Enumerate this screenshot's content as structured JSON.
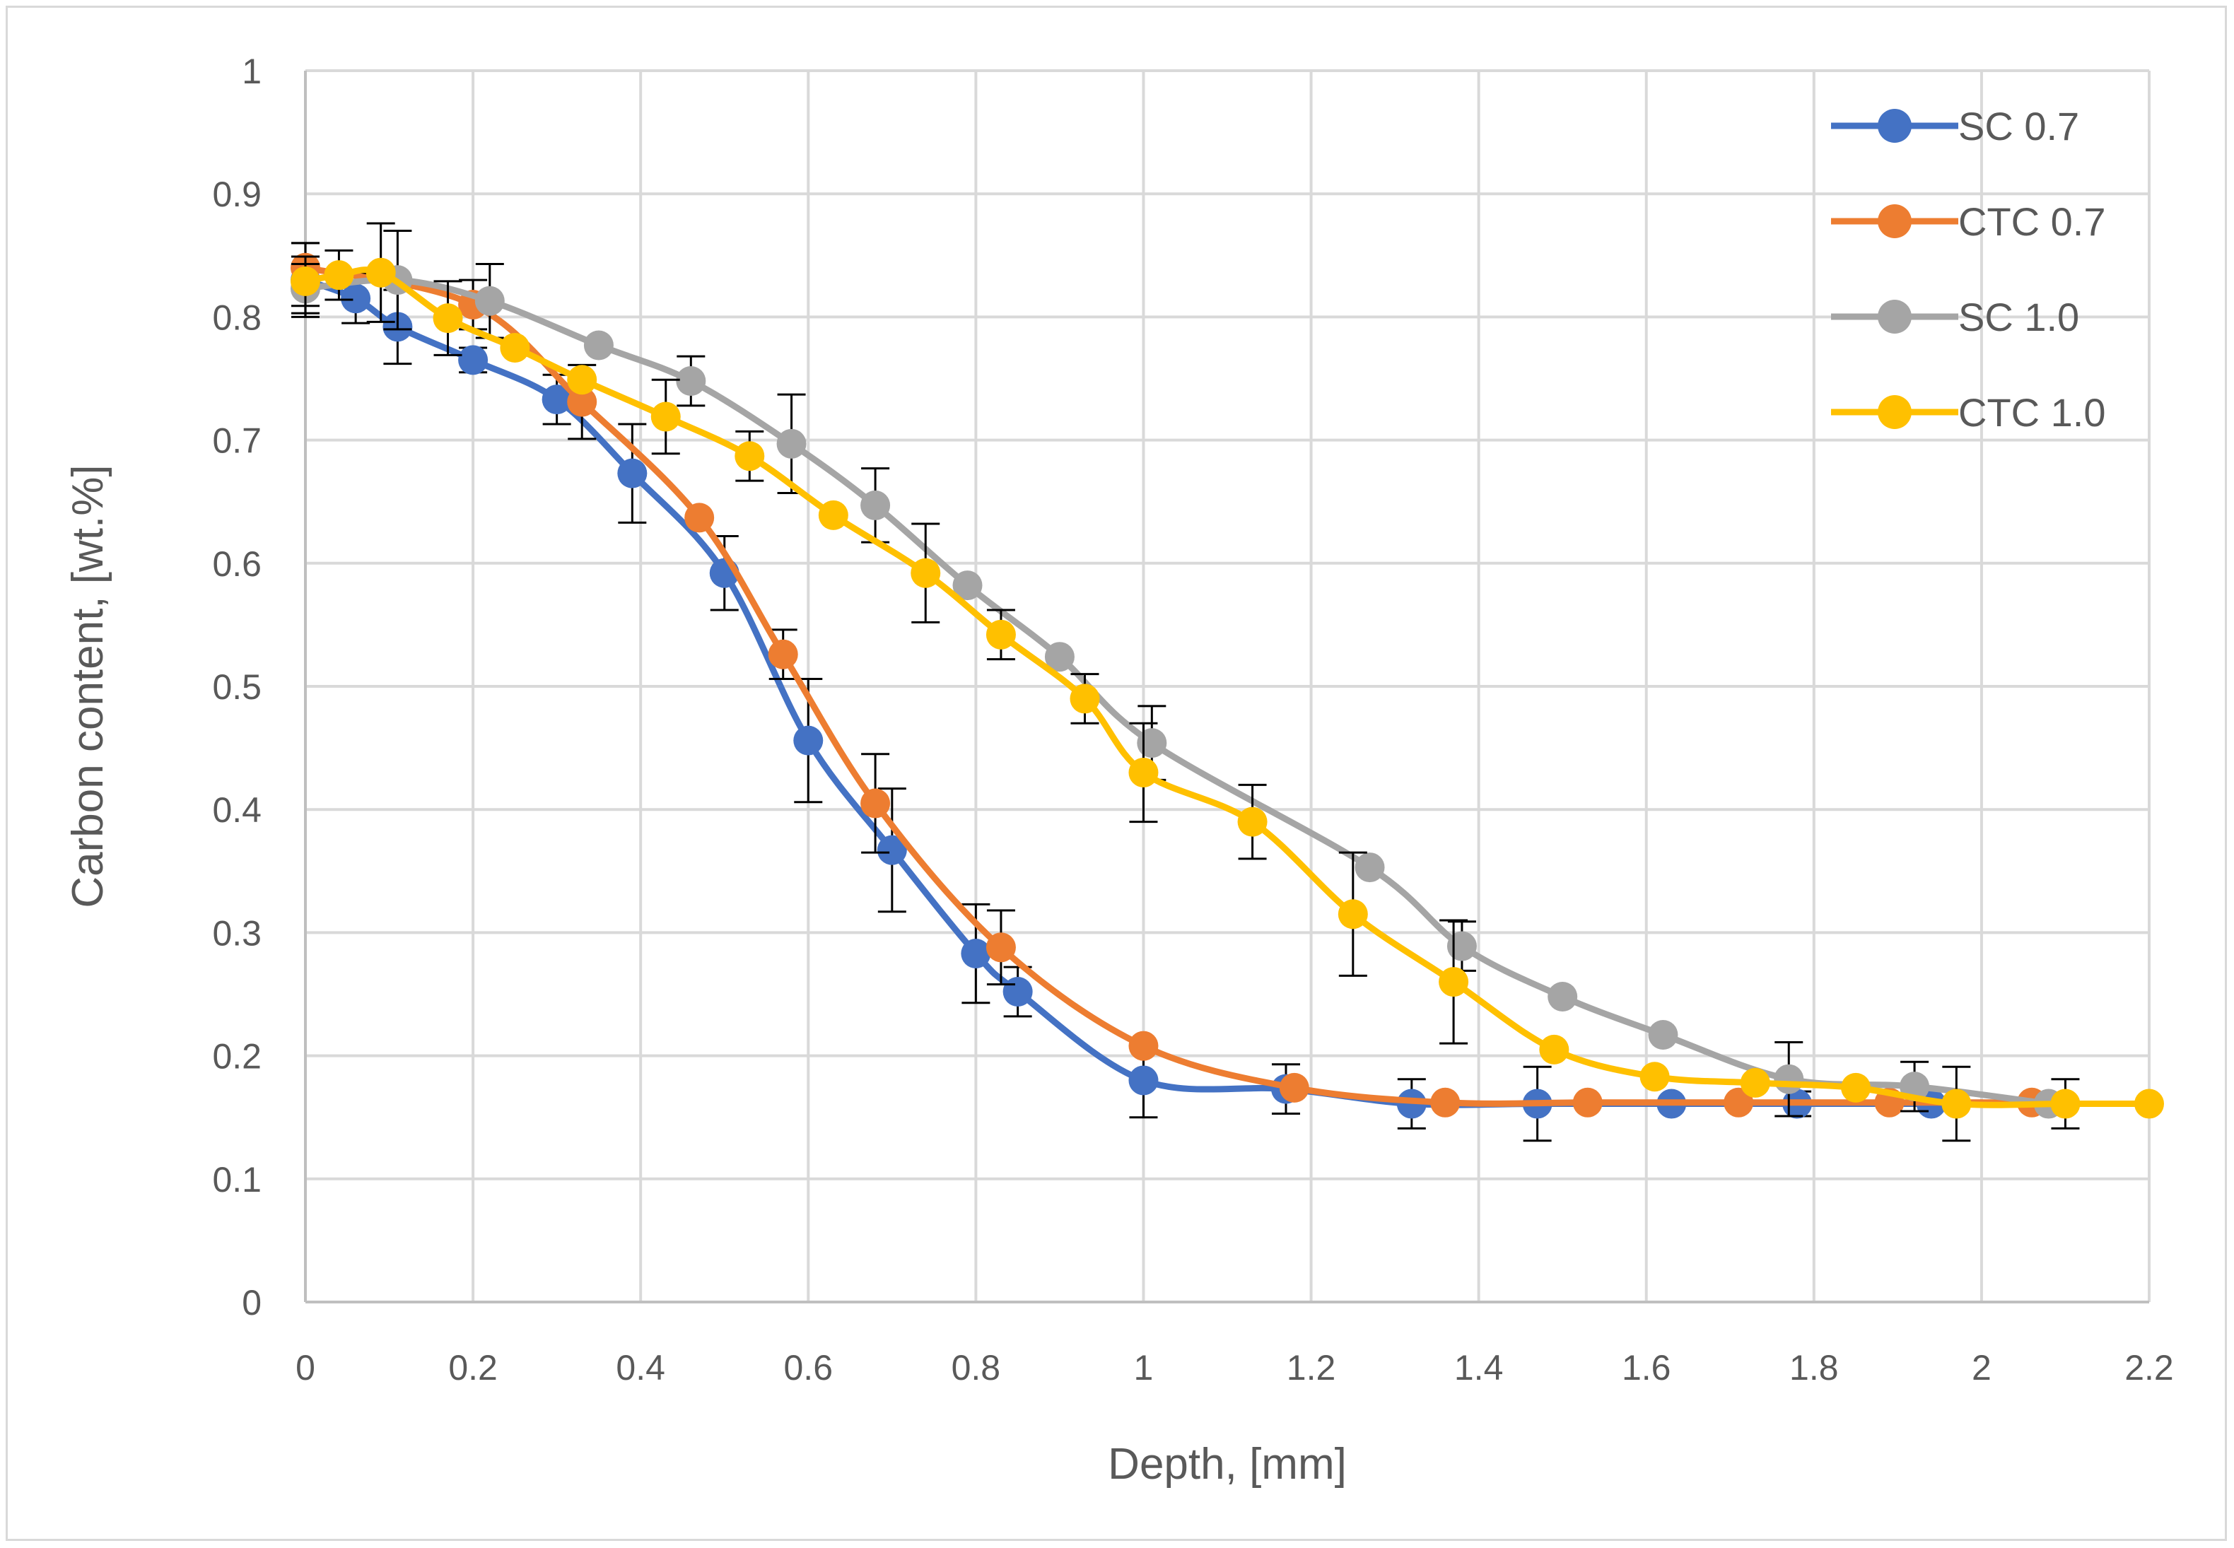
{
  "chart_data": {
    "type": "line",
    "title": "",
    "xlabel": "Depth, [mm]",
    "ylabel": "Carbon content, [wt.%]",
    "xlim": [
      0,
      2.2
    ],
    "ylim": [
      0,
      1
    ],
    "xticks": [
      "0",
      "0.2",
      "0.4",
      "0.6",
      "0.8",
      "1",
      "1.2",
      "1.4",
      "1.6",
      "1.8",
      "2",
      "2.2"
    ],
    "yticks": [
      "0",
      "0.1",
      "0.2",
      "0.3",
      "0.4",
      "0.5",
      "0.6",
      "0.7",
      "0.8",
      "0.9",
      "1"
    ],
    "grid": true,
    "legend_position": "top-right",
    "series": [
      {
        "name": "SC 0.7",
        "color": "#4472C4",
        "x": [
          0.0,
          0.06,
          0.11,
          0.2,
          0.3,
          0.39,
          0.5,
          0.6,
          0.7,
          0.8,
          0.85,
          1.0,
          1.17,
          1.32,
          1.47,
          1.63,
          1.78,
          1.94
        ],
        "y": [
          0.83,
          0.815,
          0.792,
          0.765,
          0.733,
          0.673,
          0.592,
          0.456,
          0.367,
          0.283,
          0.252,
          0.18,
          0.173,
          0.161,
          0.161,
          0.161,
          0.161,
          0.161
        ],
        "err": [
          0.03,
          0.02,
          0.03,
          0.01,
          0.02,
          0.04,
          0.03,
          0.05,
          0.05,
          0.04,
          0.02,
          0.03,
          0.02,
          0.02,
          0.03,
          0.0,
          0.01,
          0.0
        ]
      },
      {
        "name": "CTC 0.7",
        "color": "#ED7D31",
        "x": [
          0.0,
          0.2,
          0.33,
          0.47,
          0.57,
          0.68,
          0.83,
          1.0,
          1.18,
          1.36,
          1.53,
          1.71,
          1.89,
          2.06
        ],
        "y": [
          0.84,
          0.81,
          0.731,
          0.637,
          0.526,
          0.405,
          0.288,
          0.208,
          0.174,
          0.162,
          0.162,
          0.162,
          0.162,
          0.162
        ],
        "err": [
          0.02,
          0.02,
          0.03,
          0.0,
          0.02,
          0.04,
          0.03,
          0.0,
          0.0,
          0.0,
          0.0,
          0.0,
          0.0,
          0.0
        ]
      },
      {
        "name": "SC 1.0",
        "color": "#A5A5A5",
        "x": [
          0.0,
          0.11,
          0.22,
          0.35,
          0.46,
          0.58,
          0.68,
          0.79,
          0.9,
          1.01,
          1.27,
          1.38,
          1.5,
          1.62,
          1.77,
          1.92,
          2.08
        ],
        "y": [
          0.823,
          0.83,
          0.813,
          0.777,
          0.748,
          0.697,
          0.647,
          0.582,
          0.524,
          0.454,
          0.353,
          0.289,
          0.248,
          0.217,
          0.181,
          0.175,
          0.161
        ],
        "err": [
          0.02,
          0.04,
          0.03,
          0.0,
          0.02,
          0.04,
          0.03,
          0.0,
          0.0,
          0.03,
          0.0,
          0.02,
          0.0,
          0.0,
          0.03,
          0.02,
          0.0
        ]
      },
      {
        "name": "CTC 1.0",
        "color": "#FFC000",
        "x": [
          0.0,
          0.04,
          0.09,
          0.17,
          0.25,
          0.33,
          0.43,
          0.53,
          0.63,
          0.74,
          0.83,
          0.93,
          1.0,
          1.13,
          1.25,
          1.37,
          1.49,
          1.61,
          1.73,
          1.85,
          1.97,
          2.1,
          2.2
        ],
        "y": [
          0.829,
          0.834,
          0.836,
          0.799,
          0.775,
          0.749,
          0.719,
          0.687,
          0.639,
          0.592,
          0.542,
          0.49,
          0.43,
          0.39,
          0.315,
          0.26,
          0.205,
          0.183,
          0.178,
          0.174,
          0.161,
          0.161,
          0.161
        ],
        "err": [
          0.02,
          0.02,
          0.04,
          0.03,
          0.0,
          0.0,
          0.03,
          0.02,
          0.0,
          0.04,
          0.02,
          0.02,
          0.04,
          0.03,
          0.05,
          0.05,
          0.0,
          0.0,
          0.0,
          0.0,
          0.03,
          0.02,
          0.0
        ]
      }
    ]
  }
}
